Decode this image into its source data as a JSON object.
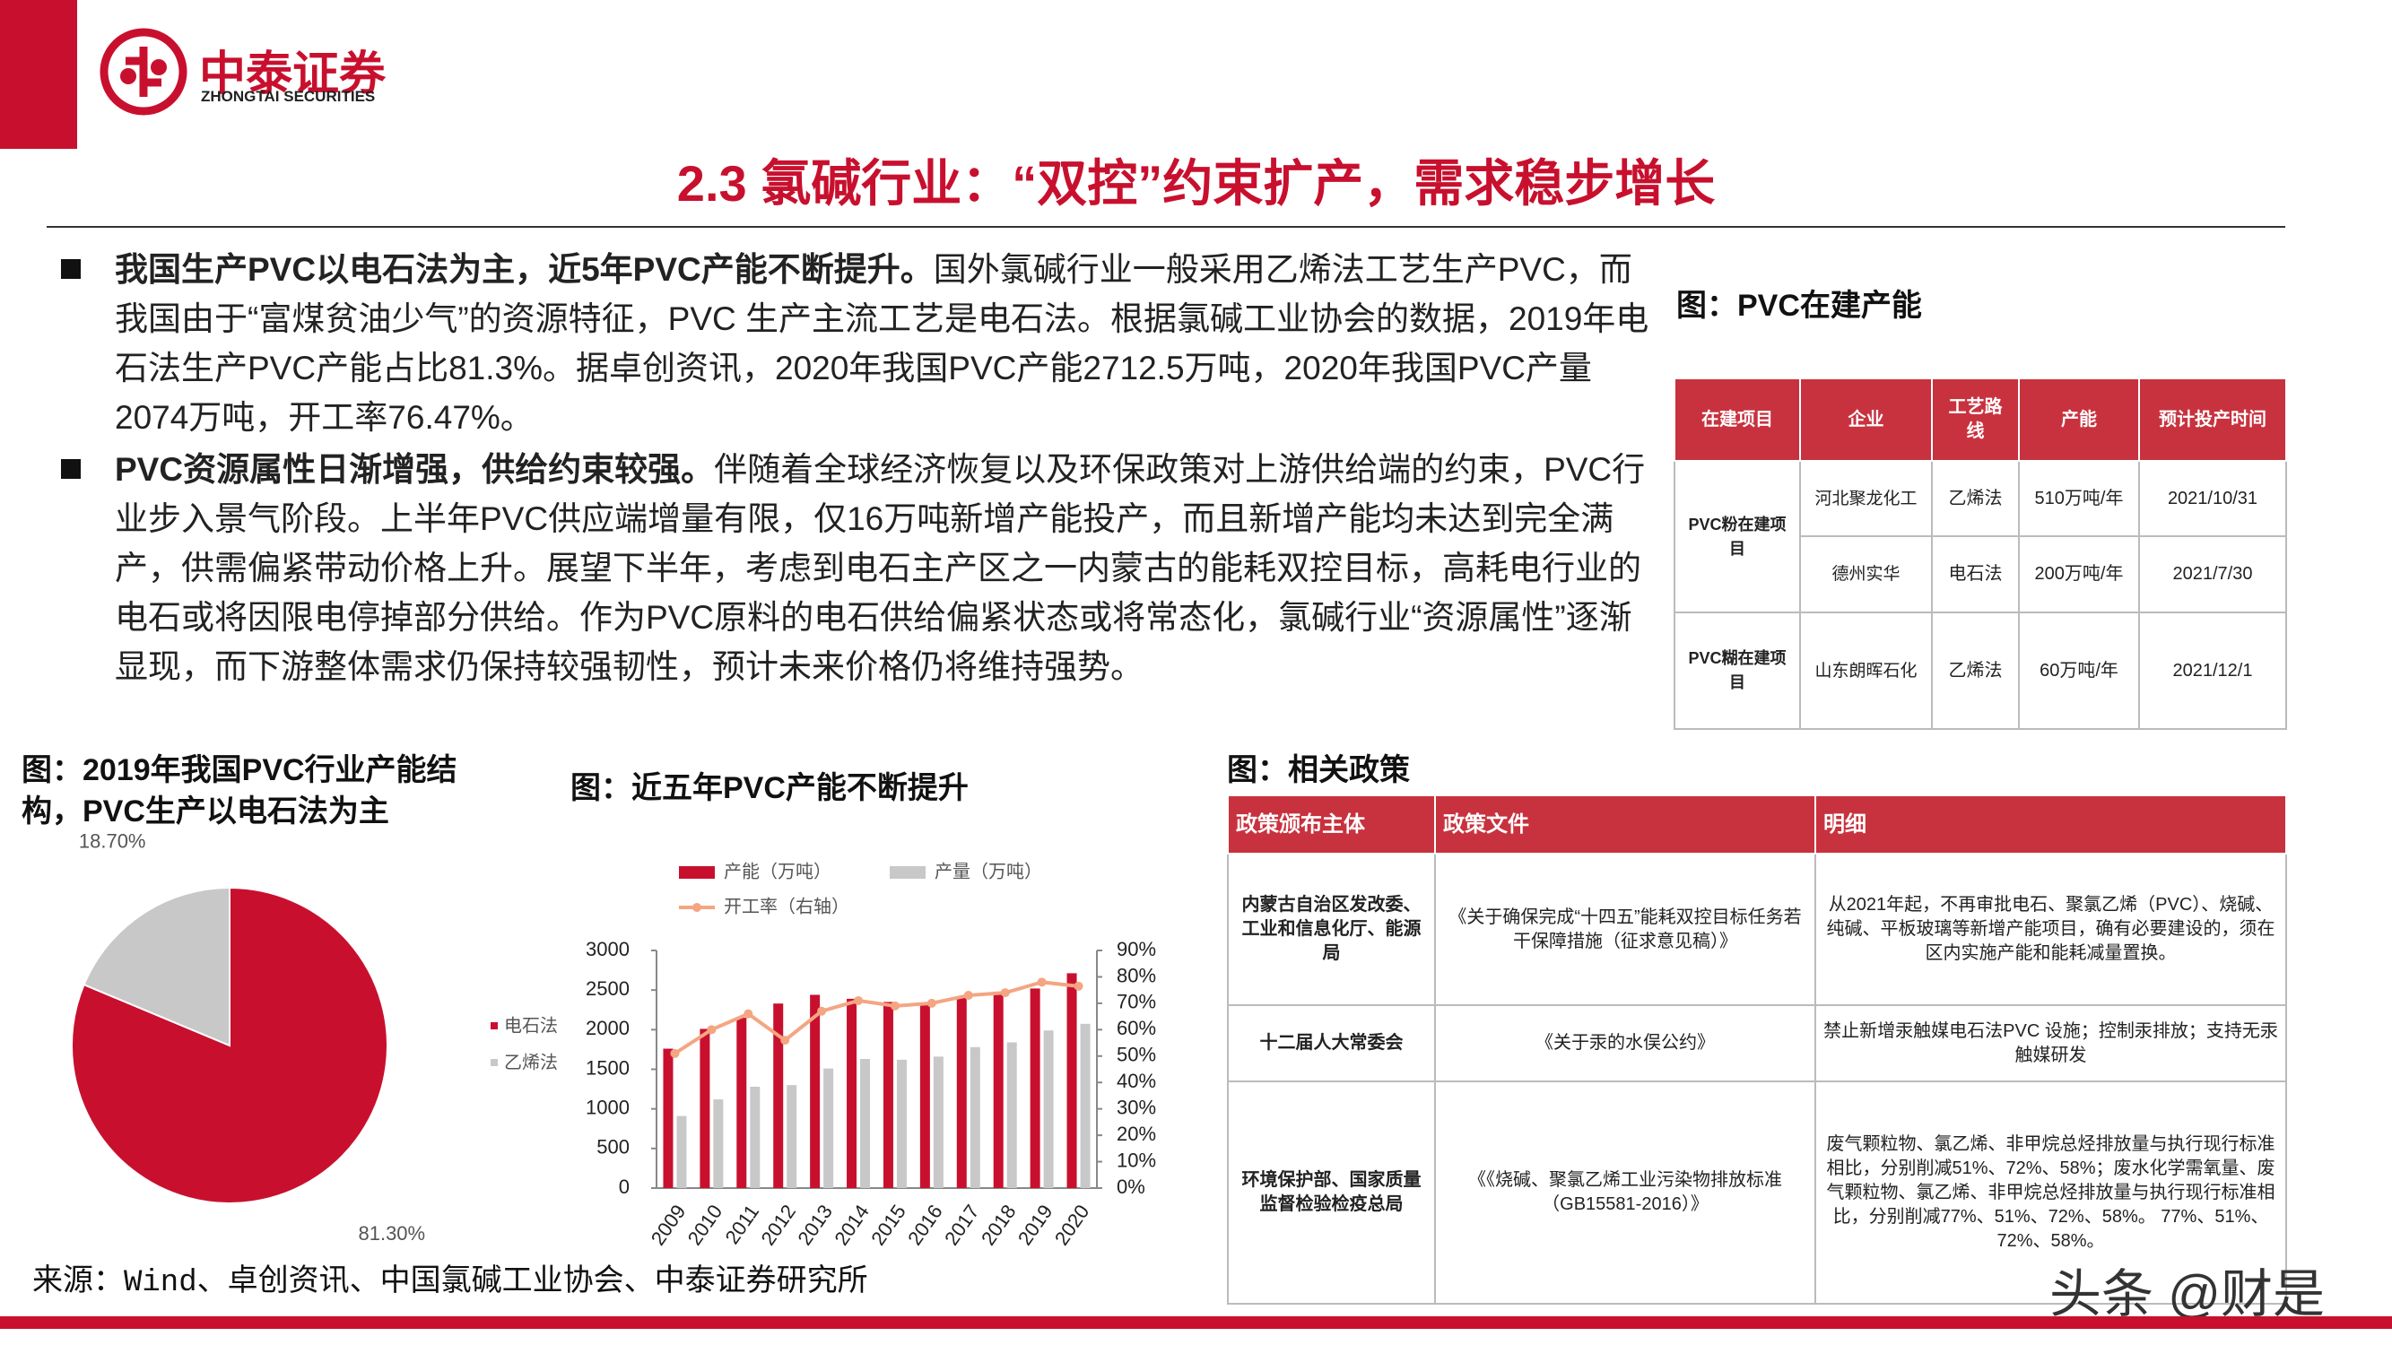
{
  "header": {
    "logo_cn": "中泰证券",
    "logo_en": "ZHONGTAI SECURITIES",
    "title": "2.3 氯碱行业：“双控”约束扩产，需求稳步增长"
  },
  "bullets": [
    {
      "lead": "我国生产PVC以电石法为主，近5年PVC产能不断提升。",
      "text": "国外氯碱行业一般采用乙烯法工艺生产PVC，而我国由于“富煤贫油少气”的资源特征，PVC 生产主流工艺是电石法。根据氯碱工业协会的数据，2019年电石法生产PVC产能占比81.3%。据卓创资讯，2020年我国PVC产能2712.5万吨，2020年我国PVC产量2074万吨，开工率76.47%。"
    },
    {
      "lead": "PVC资源属性日渐增强，供给约束较强。",
      "text": "伴随着全球经济恢复以及环保政策对上游供给端的约束，PVC行业步入景气阶段。上半年PVC供应端增量有限，仅16万吨新增产能投产，而且新增产能均未达到完全满产，供需偏紧带动价格上升。展望下半年，考虑到电石主产区之一内蒙古的能耗双控目标，高耗电行业的电石或将因限电停掉部分供给。作为PVC原料的电石供给偏紧状态或将常态化，氯碱行业“资源属性”逐渐显现，而下游整体需求仍保持较强韧性，预计未来价格仍将维持强势。"
    }
  ],
  "capacity_table": {
    "caption": "图：PVC在建产能",
    "header": [
      "在建项目",
      "企业",
      "工艺路线",
      "产能",
      "预计投产时间"
    ],
    "groups": [
      {
        "project": "PVC粉在建项目",
        "rows": [
          [
            "河北聚龙化工",
            "乙烯法",
            "510万吨/年",
            "2021/10/31"
          ],
          [
            "德州实华",
            "电石法",
            "200万吨/年",
            "2021/7/30"
          ]
        ]
      },
      {
        "project": "PVC糊在建项目",
        "rows": [
          [
            "山东朗晖石化",
            "乙烯法",
            "60万吨/年",
            "2021/12/1"
          ]
        ]
      }
    ]
  },
  "policy_table": {
    "caption": "图：相关政策",
    "header": [
      "政策颁布主体",
      "政策文件",
      "明细"
    ],
    "rows": [
      [
        "内蒙古自治区发改委、工业和信息化厅、能源局",
        "《关于确保完成“十四五”能耗双控目标任务若干保障措施（征求意见稿）》",
        "从2021年起，不再审批电石、聚氯乙烯（PVC）、烧碱、纯碱、平板玻璃等新增产能项目，确有必要建设的，须在区内实施产能和能耗减量置换。"
      ],
      [
        "十二届人大常委会",
        "《关于汞的水俣公约》",
        "禁止新增汞触媒电石法PVC 设施；控制汞排放；支持无汞触媒研发"
      ],
      [
        "环境保护部、国家质量监督检验检疫总局",
        "《《烧碱、聚氯乙烯工业污染物排放标准（GB15581-2016）》",
        "废气颗粒物、氯乙烯、非甲烷总烃排放量与执行现行标准相比，分别削减51%、72%、58%；废水化学需氧量、废气颗粒物、氯乙烯、非甲烷总烃排放量与执行现行标准相比，分别削减77%、51%、72%、58%。 77%、51%、72%、58%。"
      ]
    ]
  },
  "chart_data": [
    {
      "type": "pie",
      "title": "图：2019年我国PVC行业产能结构，PVC生产以电石法为主",
      "categories": [
        "电石法",
        "乙烯法"
      ],
      "values": [
        81.3,
        18.7
      ],
      "value_labels": [
        "81.30%",
        "18.70%"
      ],
      "colors": [
        "#c8102e",
        "#c8c8c8"
      ]
    },
    {
      "type": "bar",
      "title": "图：近五年PVC产能不断提升",
      "categories": [
        "2009",
        "2010",
        "2011",
        "2012",
        "2013",
        "2014",
        "2015",
        "2016",
        "2017",
        "2018",
        "2019",
        "2020"
      ],
      "series": [
        {
          "name": "产能（万吨）",
          "color": "#c8102e",
          "values": [
            1760,
            2010,
            2150,
            2330,
            2440,
            2390,
            2350,
            2340,
            2410,
            2480,
            2520,
            2712.5
          ]
        },
        {
          "name": "产量（万吨）",
          "color": "#c8c8c8",
          "values": [
            910,
            1120,
            1280,
            1300,
            1510,
            1630,
            1620,
            1660,
            1780,
            1840,
            1990,
            2074
          ]
        },
        {
          "name": "开工率（右轴）",
          "color": "#f4a582",
          "type": "line",
          "axis": "y2",
          "values": [
            51,
            60,
            66,
            56,
            67,
            71,
            69,
            70,
            73,
            74,
            78,
            76.47
          ]
        }
      ],
      "ylim": [
        0,
        3000
      ],
      "yticks": [
        0,
        500,
        1000,
        1500,
        2000,
        2500,
        3000
      ],
      "y2lim": [
        0,
        90
      ],
      "y2ticks": [
        {
          "value": 0,
          "label": "0%"
        },
        {
          "value": 10,
          "label": "10%"
        },
        {
          "value": 20,
          "label": "20%"
        },
        {
          "value": 30,
          "label": "30%"
        },
        {
          "value": 40,
          "label": "40%"
        },
        {
          "value": 50,
          "label": "50%"
        },
        {
          "value": 60,
          "label": "60%"
        },
        {
          "value": 70,
          "label": "70%"
        },
        {
          "value": 80,
          "label": "80%"
        },
        {
          "value": 90,
          "label": "90%"
        }
      ],
      "grid": false
    }
  ],
  "source": "来源：Wind、卓创资讯、中国氯碱工业协会、中泰证券研究所",
  "watermark": "头条 @财是"
}
